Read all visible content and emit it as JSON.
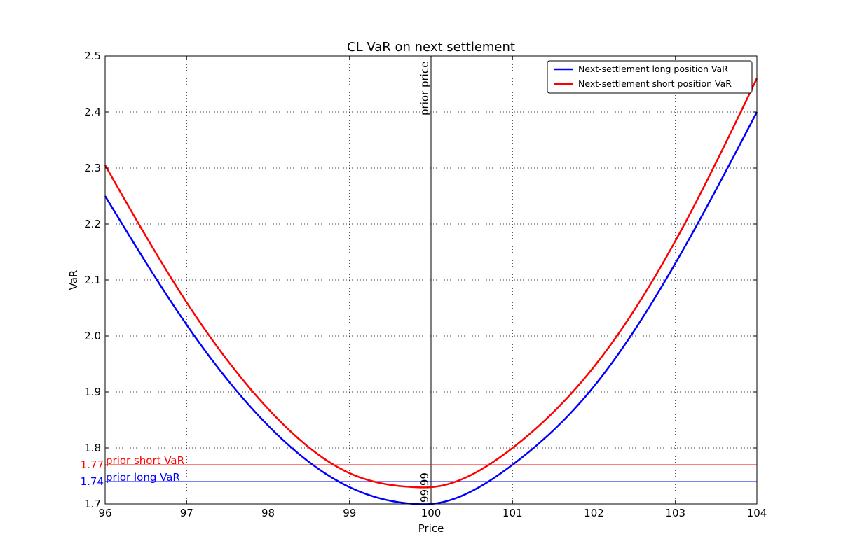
{
  "chart_data": {
    "type": "line",
    "title": "CL VaR on next settlement",
    "xlabel": "Price",
    "ylabel": "VaR",
    "xlim": [
      96,
      104
    ],
    "ylim": [
      1.7,
      2.5
    ],
    "x_ticks": [
      96,
      97,
      98,
      99,
      100,
      101,
      102,
      103,
      104
    ],
    "y_ticks": [
      1.7,
      1.8,
      1.9,
      2.0,
      2.1,
      2.2,
      2.3,
      2.4,
      2.5
    ],
    "y_tick_labels": [
      "1.7",
      "1.8",
      "1.9",
      "2.0",
      "2.1",
      "2.2",
      "2.3",
      "2.4",
      "2.5"
    ],
    "grid": true,
    "legend_position": "top-right",
    "series": [
      {
        "name": "Next-settlement long position VaR",
        "color": "#0000ff",
        "x": [
          96,
          97,
          98,
          99,
          99.8,
          100,
          101,
          102,
          103,
          104
        ],
        "y": [
          2.25,
          2.02,
          1.84,
          1.73,
          1.7,
          1.7,
          1.77,
          1.91,
          2.13,
          2.4
        ]
      },
      {
        "name": "Next-settlement short position VaR",
        "color": "#ff0000",
        "x": [
          96,
          97,
          98,
          99,
          99.8,
          100,
          101,
          102,
          103,
          104
        ],
        "y": [
          2.305,
          2.06,
          1.87,
          1.755,
          1.73,
          1.73,
          1.8,
          1.945,
          2.17,
          2.46
        ]
      }
    ],
    "reference_lines": [
      {
        "orientation": "vertical",
        "value": 100,
        "color": "#000000",
        "label": "prior price",
        "value_label": "99.99"
      },
      {
        "orientation": "horizontal",
        "value": 1.77,
        "color": "#ff0000",
        "label": "prior short VaR",
        "value_label": "1.77"
      },
      {
        "orientation": "horizontal",
        "value": 1.74,
        "color": "#0000ff",
        "label": "prior long VaR",
        "value_label": "1.74"
      }
    ]
  }
}
